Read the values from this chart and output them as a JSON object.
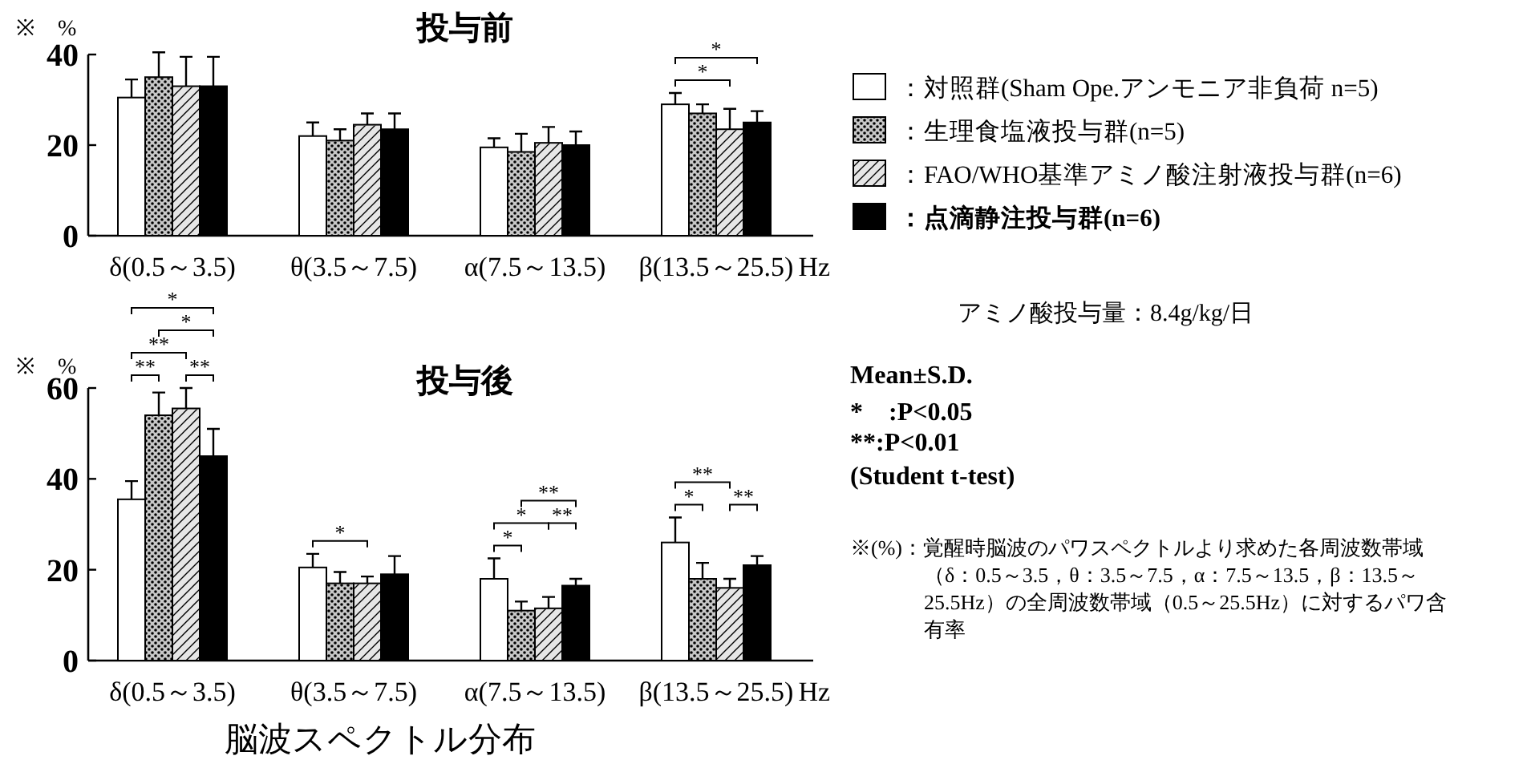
{
  "chart_data": [
    {
      "type": "bar",
      "title": "投与前",
      "ylabel": "※　%",
      "xlabel": "Hz",
      "categories": [
        "δ(0.5～3.5)",
        "θ(3.5～7.5)",
        "α(7.5～13.5)",
        "β(13.5～25.5)"
      ],
      "ylim": [
        0,
        40
      ],
      "yticks": [
        0,
        20,
        40
      ],
      "legend": "right",
      "series": [
        {
          "name": "：対照群(Sham Ope.アンモニア非負荷 n=5)",
          "color": "#ffffff",
          "values": [
            30.5,
            22,
            19.5,
            29
          ],
          "errors": [
            [
              30.5,
              34.5
            ],
            [
              22,
              25
            ],
            [
              19.5,
              21.5
            ],
            [
              29,
              31.5
            ]
          ]
        },
        {
          "name": "：生理食塩液投与群(n=5)",
          "color": "#c8c8c8",
          "values": [
            35,
            21,
            18.5,
            27
          ],
          "errors": [
            [
              35,
              40.5
            ],
            [
              21,
              23.5
            ],
            [
              18.5,
              22.5
            ],
            [
              27,
              29
            ]
          ]
        },
        {
          "name": "：FAO/WHO基準アミノ酸注射液投与群(n=6)",
          "color": "#e6e6e6",
          "values": [
            33,
            24.5,
            20.5,
            23.5
          ],
          "errors": [
            [
              33,
              39.5
            ],
            [
              24.5,
              27
            ],
            [
              20.5,
              24
            ],
            [
              23.5,
              28
            ]
          ]
        },
        {
          "name": "：点滴静注投与群(n=6)",
          "color": "#000000",
          "values": [
            33,
            23.5,
            20,
            25
          ],
          "errors": [
            [
              33,
              39.5
            ],
            [
              23.5,
              27
            ],
            [
              20,
              23
            ],
            [
              25,
              27.5
            ]
          ]
        }
      ],
      "annotations": [
        "*",
        "*",
        "アミノ酸投与量：8.4g/kg/日"
      ]
    },
    {
      "type": "bar",
      "title": "投与後",
      "ylabel": "※　%",
      "xlabel": "Hz",
      "categories": [
        "δ(0.5～3.5)",
        "θ(3.5～7.5)",
        "α(7.5～13.5)",
        "β(13.5～25.5)"
      ],
      "ylim": [
        0,
        60
      ],
      "yticks": [
        0,
        20,
        40,
        60
      ],
      "series": [
        {
          "color": "#ffffff",
          "values": [
            35.5,
            20.5,
            18,
            26
          ],
          "errors": [
            [
              35.5,
              39.5
            ],
            [
              20.5,
              23.5
            ],
            [
              18,
              22.5
            ],
            [
              26,
              31.5
            ]
          ]
        },
        {
          "color": "#c8c8c8",
          "values": [
            54,
            17,
            11,
            18
          ],
          "errors": [
            [
              54,
              59
            ],
            [
              17,
              19.5
            ],
            [
              11,
              13
            ],
            [
              18,
              21.5
            ]
          ]
        },
        {
          "color": "#e6e6e6",
          "values": [
            55.5,
            17,
            11.5,
            16
          ],
          "errors": [
            [
              55.5,
              60
            ],
            [
              17,
              18.5
            ],
            [
              11.5,
              14
            ],
            [
              16,
              18
            ]
          ]
        },
        {
          "color": "#000000",
          "values": [
            45,
            19,
            16.5,
            21
          ],
          "errors": [
            [
              45,
              51
            ],
            [
              19,
              23
            ],
            [
              16.5,
              18
            ],
            [
              21,
              23
            ]
          ]
        }
      ],
      "annotations": [
        "**",
        "**",
        "**",
        "*",
        "*",
        "*",
        "*",
        "*",
        "**",
        "**",
        "*",
        "**",
        "**",
        "Mean±S.D.",
        "*　:P<0.05",
        "**:P<0.01",
        "(Student t-test)",
        "※(%)：覚醒時脳波のパワスペクトルより求めた各周波数帯域（δ：0.5～3.5，θ：3.5～7.5，α：7.5～13.5，β：13.5～25.5Hz）の全周波数帯域（0.5～25.5Hz）に対するパワ含有率",
        "脳波スペクトル分布"
      ]
    }
  ]
}
